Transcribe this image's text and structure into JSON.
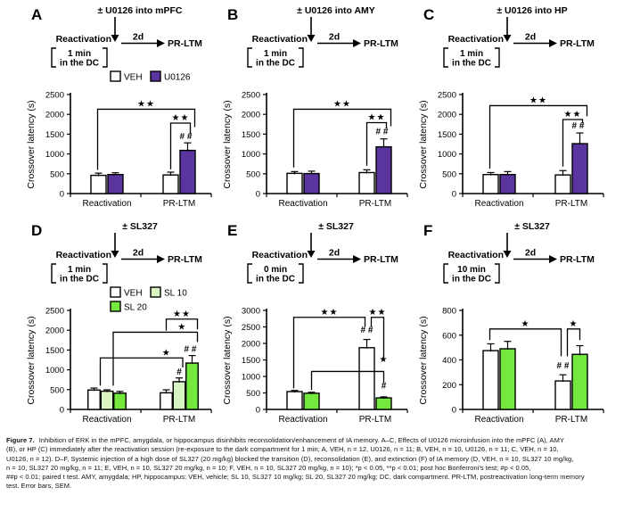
{
  "caption": {
    "prefix": "Figure 7.",
    "lines": [
      "Inhibition of ERK in the mPFC, amygdala, or hippocampus disinhibits reconsolidation/enhancement of IA memory. A–C, Effects of U0126 microinfusion into the mPFC (A), AMY",
      "(B), or HP (C) immediately after the reactivation session (re-exposure to the dark compartment for 1 min; A, VEH, n = 12, U0126, n = 11; B, VEH, n = 10, U0126, n = 11; C, VEH, n = 10,",
      "U0126, n = 12). D–F, Systemic injection of a high dose of SL327 (20 mg/kg) blocked the transition (D), reconsolidation (E), and extinction (F) of IA memory (D, VEH, n = 10, SL327 10 mg/kg,",
      "n = 10, SL327 20 mg/kg, n = 11; E, VEH, n = 10, SL327 20 mg/kg, n = 10; F, VEH, n = 10, SL327 20 mg/kg, n = 10); *p < 0.05, **p < 0.01; post hoc Bonferroni's test; #p < 0.05,",
      "##p < 0.01; paired t test. AMY, amygdala; HP, hippocampus; VEH, vehicle; SL 10, SL327 10 mg/kg; SL 20, SL327 20 mg/kg; DC, dark compartment. PR-LTM, postreactivation long-term memory",
      "test. Error bars, SEM."
    ]
  },
  "colors": {
    "veh": "#ffffff",
    "u0126": "#5a35a0",
    "sl10": "#d9f4c3",
    "sl20": "#74e83c"
  },
  "chart_data": [
    {
      "panel": "A",
      "type": "bar",
      "header": {
        "drug": "± U0126 into mPFC",
        "step1": "Reactivation",
        "duration": "1 min",
        "location": "in the DC",
        "delay": "2d",
        "step2": "PR-LTM"
      },
      "ylabel": "Crossover latency (s)",
      "ylim": [
        0,
        2500
      ],
      "ystep": 500,
      "categories": [
        "Reactivation",
        "PR-LTM"
      ],
      "series": [
        {
          "name": "VEH",
          "color": "#ffffff",
          "values": [
            460,
            470
          ],
          "errors": [
            55,
            70
          ]
        },
        {
          "name": "U0126",
          "color": "#5a35a0",
          "values": [
            480,
            1090
          ],
          "errors": [
            45,
            190
          ]
        }
      ],
      "legend_rows": [
        [
          "VEH",
          "U0126"
        ]
      ],
      "sig_marks": [
        {
          "text": "# #",
          "group": 1,
          "series": 1,
          "dx": -2,
          "y": 1370
        }
      ],
      "sig_brackets": [
        {
          "label": "**",
          "y": 2130,
          "from": {
            "group": 0,
            "series": 0,
            "dx": -1,
            "down_to": 600
          },
          "to": {
            "group": 1,
            "series": 1,
            "dx": 8,
            "down_to": 1680
          }
        },
        {
          "label": "**",
          "y": 1780,
          "from": {
            "group": 1,
            "series": 0,
            "dx": 0,
            "down_to": 610
          },
          "to": {
            "group": 1,
            "series": 1,
            "dx": 3,
            "down_to": 1510
          }
        }
      ]
    },
    {
      "panel": "B",
      "type": "bar",
      "header": {
        "drug": "± U0126 into AMY",
        "step1": "Reactivation",
        "duration": "1 min",
        "location": "in the DC",
        "delay": "2d",
        "step2": "PR-LTM"
      },
      "ylabel": "Crossover latency (s)",
      "ylim": [
        0,
        2500
      ],
      "ystep": 500,
      "categories": [
        "Reactivation",
        "PR-LTM"
      ],
      "series": [
        {
          "name": "VEH",
          "color": "#ffffff",
          "values": [
            510,
            530
          ],
          "errors": [
            45,
            70
          ]
        },
        {
          "name": "U0126",
          "color": "#5a35a0",
          "values": [
            505,
            1180
          ],
          "errors": [
            60,
            200
          ]
        }
      ],
      "legend_rows": [],
      "sig_marks": [
        {
          "text": "# #",
          "group": 1,
          "series": 1,
          "dx": -2,
          "y": 1500
        }
      ],
      "sig_brackets": [
        {
          "label": "**",
          "y": 2130,
          "from": {
            "group": 0,
            "series": 0,
            "dx": -1,
            "down_to": 660
          },
          "to": {
            "group": 1,
            "series": 1,
            "dx": 8,
            "down_to": 1700
          }
        },
        {
          "label": "**",
          "y": 1790,
          "from": {
            "group": 1,
            "series": 0,
            "dx": 0,
            "down_to": 700
          },
          "to": {
            "group": 1,
            "series": 1,
            "dx": 3,
            "down_to": 1640
          }
        }
      ]
    },
    {
      "panel": "C",
      "type": "bar",
      "header": {
        "drug": "± U0126 into HP",
        "step1": "Reactivation",
        "duration": "1 min",
        "location": "in the DC",
        "delay": "2d",
        "step2": "PR-LTM"
      },
      "ylabel": "Crossover latency (s)",
      "ylim": [
        0,
        2500
      ],
      "ystep": 500,
      "categories": [
        "Reactivation",
        "PR-LTM"
      ],
      "series": [
        {
          "name": "VEH",
          "color": "#ffffff",
          "values": [
            480,
            470
          ],
          "errors": [
            50,
            110
          ]
        },
        {
          "name": "U0126",
          "color": "#5a35a0",
          "values": [
            480,
            1260
          ],
          "errors": [
            75,
            270
          ]
        }
      ],
      "legend_rows": [],
      "sig_marks": [
        {
          "text": "# #",
          "group": 1,
          "series": 1,
          "dx": -2,
          "y": 1640
        }
      ],
      "sig_brackets": [
        {
          "label": "**",
          "y": 2220,
          "from": {
            "group": 0,
            "series": 0,
            "dx": -1,
            "down_to": 630
          },
          "to": {
            "group": 1,
            "series": 1,
            "dx": 8,
            "down_to": 1950
          }
        },
        {
          "label": "**",
          "y": 1870,
          "from": {
            "group": 1,
            "series": 0,
            "dx": 0,
            "down_to": 680
          },
          "to": {
            "group": 1,
            "series": 1,
            "dx": 3,
            "down_to": 1780
          }
        }
      ]
    },
    {
      "panel": "D",
      "type": "bar",
      "header": {
        "drug": "± SL327",
        "step1": "Reactivation",
        "duration": "1 min",
        "location": "in the DC",
        "delay": "2d",
        "step2": "PR-LTM"
      },
      "ylabel": "Crossover latency (s)",
      "ylim": [
        0,
        2500
      ],
      "ystep": 500,
      "categories": [
        "Reactivation",
        "PR-LTM"
      ],
      "series": [
        {
          "name": "VEH",
          "color": "#ffffff",
          "values": [
            490,
            420
          ],
          "errors": [
            50,
            75
          ]
        },
        {
          "name": "SL 10",
          "color": "#d9f4c3",
          "values": [
            460,
            700
          ],
          "errors": [
            35,
            95
          ]
        },
        {
          "name": "SL 20",
          "color": "#74e83c",
          "values": [
            410,
            1170
          ],
          "errors": [
            45,
            190
          ]
        }
      ],
      "legend_rows": [
        [
          "VEH",
          "SL 10"
        ],
        [
          "SL 20"
        ]
      ],
      "sig_marks": [
        {
          "text": "#",
          "group": 1,
          "series": 1,
          "dx": 0,
          "y": 880
        },
        {
          "text": "# #",
          "group": 1,
          "series": 2,
          "dx": -2,
          "y": 1450
        }
      ],
      "sig_brackets": [
        {
          "label": "**",
          "y": 2280,
          "from": {
            "group": 1,
            "series": 0,
            "dx": 0,
            "down_to": 1990
          },
          "to": {
            "group": 1,
            "series": 2,
            "dx": 6,
            "down_to": 2020
          }
        },
        {
          "label": "*",
          "y": 1950,
          "label_dx": 30,
          "from": {
            "group": 0,
            "series": 1,
            "dx": 7,
            "down_to": 600
          },
          "to": {
            "group": 1,
            "series": 2,
            "dx": 6,
            "down_to": 1700
          }
        },
        {
          "label": "*",
          "y": 1300,
          "label_dx": 28,
          "from": {
            "group": 0,
            "series": 0,
            "dx": 7,
            "down_to": 600
          },
          "to": {
            "group": 1,
            "series": 1,
            "dx": 4,
            "down_to": 1060
          }
        }
      ]
    },
    {
      "panel": "E",
      "type": "bar",
      "header": {
        "drug": "± SL327",
        "step1": "Reactivation",
        "duration": "0 min",
        "location": "in the DC",
        "delay": "2d",
        "step2": "PR-LTM"
      },
      "ylabel": "Crossover latency (s)",
      "ylim": [
        0,
        3000
      ],
      "ystep": 500,
      "categories": [
        "Reactivation",
        "PR-LTM"
      ],
      "series": [
        {
          "name": "VEH",
          "color": "#ffffff",
          "values": [
            540,
            1870
          ],
          "errors": [
            35,
            250
          ]
        },
        {
          "name": "SL 20",
          "color": "#74e83c",
          "values": [
            490,
            350
          ],
          "errors": [
            30,
            30
          ]
        }
      ],
      "legend_rows": [],
      "sig_marks": [
        {
          "text": "# #",
          "group": 1,
          "series": 0,
          "dx": 0,
          "y": 2320
        },
        {
          "text": "*",
          "group": 1,
          "series": 1,
          "dx": 0,
          "y": 1430
        },
        {
          "text": "#",
          "group": 1,
          "series": 1,
          "dx": 0,
          "y": 640
        }
      ],
      "sig_brackets": [
        {
          "label": "**",
          "y": 2790,
          "from": {
            "group": 0,
            "series": 0,
            "dx": -1,
            "down_to": 640
          },
          "to": {
            "group": 1,
            "series": 0,
            "dx": -2,
            "down_to": 2500
          }
        },
        {
          "label": "**",
          "y": 2790,
          "from": {
            "group": 1,
            "series": 0,
            "dx": 5,
            "down_to": 2500
          },
          "to": {
            "group": 1,
            "series": 1,
            "dx": 0,
            "down_to": 1560
          }
        },
        {
          "label": "",
          "y": 1150,
          "from": {
            "group": 0,
            "series": 1,
            "dx": 0,
            "down_to": 590
          },
          "to": {
            "group": 1,
            "series": 1,
            "dx": 0,
            "down_to": 800
          }
        }
      ]
    },
    {
      "panel": "F",
      "type": "bar",
      "header": {
        "drug": "± SL327",
        "step1": "Reactivation",
        "duration": "10 min",
        "location": "in the DC",
        "delay": "2d",
        "step2": "PR-LTM"
      },
      "ylabel": "Crossover latency (s)",
      "ylim": [
        0,
        800
      ],
      "ystep": 200,
      "categories": [
        "Reactivation",
        "PR-LTM"
      ],
      "series": [
        {
          "name": "VEH",
          "color": "#ffffff",
          "values": [
            475,
            230
          ],
          "errors": [
            55,
            50
          ]
        },
        {
          "name": "SL 20",
          "color": "#74e83c",
          "values": [
            490,
            445
          ],
          "errors": [
            60,
            70
          ]
        }
      ],
      "legend_rows": [],
      "sig_marks": [
        {
          "text": "# #",
          "group": 1,
          "series": 0,
          "dx": 0,
          "y": 330
        }
      ],
      "sig_brackets": [
        {
          "label": "*",
          "y": 650,
          "from": {
            "group": 0,
            "series": 0,
            "dx": -1,
            "down_to": 560
          },
          "to": {
            "group": 1,
            "series": 0,
            "dx": -2,
            "down_to": 430
          }
        },
        {
          "label": "*",
          "y": 650,
          "from": {
            "group": 1,
            "series": 0,
            "dx": 5,
            "down_to": 430
          },
          "to": {
            "group": 1,
            "series": 1,
            "dx": 0,
            "down_to": 560
          }
        }
      ]
    }
  ]
}
